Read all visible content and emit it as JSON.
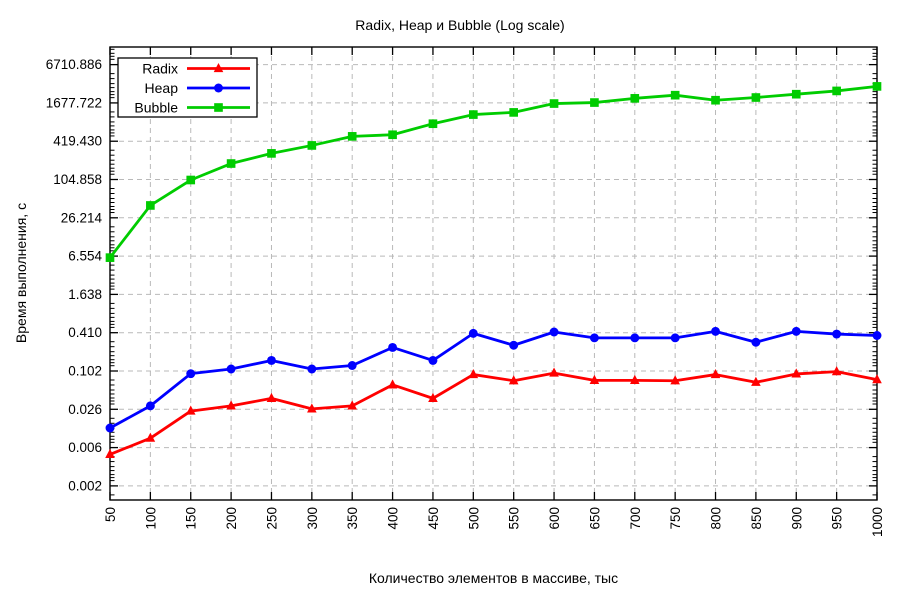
{
  "chart": {
    "title": "Radix, Heap и Bubble (Log scale)",
    "xlabel": "Количество элементов в массиве, тыс",
    "ylabel": "Время выполнения, с"
  },
  "colors": {
    "radix": "#ff0000",
    "heap": "#0000ff",
    "bubble": "#00cc00",
    "grid": "#b9b9b9",
    "axis": "#000000",
    "background": "#ffffff"
  },
  "chart_data": {
    "type": "line",
    "title": "Radix, Heap и Bubble (Log scale)",
    "xlabel": "Количество элементов в массиве, тыс",
    "ylabel": "Время выполнения, с",
    "y_scale": "log",
    "grid": true,
    "legend_position": "top-left",
    "xlim": [
      50,
      1000
    ],
    "ylim": [
      0.00096,
      12700
    ],
    "x_ticks": [
      50,
      100,
      150,
      200,
      250,
      300,
      350,
      400,
      450,
      500,
      550,
      600,
      650,
      700,
      750,
      800,
      850,
      900,
      950,
      1000
    ],
    "y_ticks": [
      {
        "value": 0.0016,
        "label": "0.002"
      },
      {
        "value": 0.0064,
        "label": "0.006"
      },
      {
        "value": 0.0256,
        "label": "0.026"
      },
      {
        "value": 0.1024,
        "label": "0.102"
      },
      {
        "value": 0.4096,
        "label": "0.410"
      },
      {
        "value": 1.6384,
        "label": "1.638"
      },
      {
        "value": 6.5536,
        "label": "6.554"
      },
      {
        "value": 26.2144,
        "label": "26.214"
      },
      {
        "value": 104.8576,
        "label": "104.858"
      },
      {
        "value": 419.4304,
        "label": "419.430"
      },
      {
        "value": 1677.7216,
        "label": "1677.722"
      },
      {
        "value": 6710.8864,
        "label": "6710.886"
      }
    ],
    "x": [
      50,
      100,
      150,
      200,
      250,
      300,
      350,
      400,
      450,
      500,
      550,
      600,
      650,
      700,
      750,
      800,
      850,
      900,
      950,
      1000
    ],
    "series": [
      {
        "name": "Radix",
        "color": "#ff0000",
        "marker": "triangle-up",
        "values": [
          0.005,
          0.009,
          0.024,
          0.029,
          0.038,
          0.026,
          0.029,
          0.062,
          0.038,
          0.09,
          0.072,
          0.095,
          0.073,
          0.073,
          0.072,
          0.09,
          0.068,
          0.092,
          0.1,
          0.075
        ]
      },
      {
        "name": "Heap",
        "color": "#0000ff",
        "marker": "circle",
        "values": [
          0.013,
          0.029,
          0.093,
          0.11,
          0.15,
          0.11,
          0.125,
          0.24,
          0.15,
          0.4,
          0.26,
          0.42,
          0.34,
          0.34,
          0.34,
          0.43,
          0.29,
          0.43,
          0.39,
          0.37
        ]
      },
      {
        "name": "Bubble",
        "color": "#00cc00",
        "marker": "square",
        "values": [
          6.2,
          41,
          103,
          187,
          270,
          360,
          500,
          530,
          790,
          1100,
          1190,
          1640,
          1700,
          1980,
          2220,
          1850,
          2040,
          2300,
          2590,
          3050
        ]
      }
    ]
  }
}
